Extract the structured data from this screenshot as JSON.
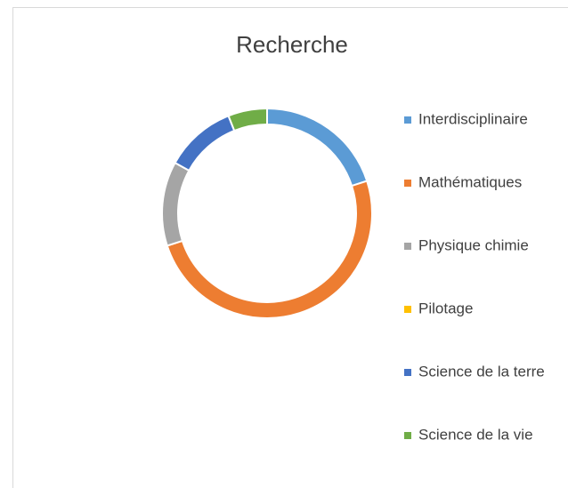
{
  "chart_data": {
    "type": "donut",
    "title": "Recherche",
    "categories": [
      "Interdisciplinaire",
      "Mathématiques",
      "Physique chimie",
      "Pilotage",
      "Science de la terre",
      "Science de la vie"
    ],
    "values": [
      20,
      50,
      13,
      0,
      11,
      6
    ],
    "colors": [
      "#5b9bd5",
      "#ed7d31",
      "#a5a5a5",
      "#ffc000",
      "#4472c4",
      "#70ad47"
    ],
    "legend": "right"
  }
}
